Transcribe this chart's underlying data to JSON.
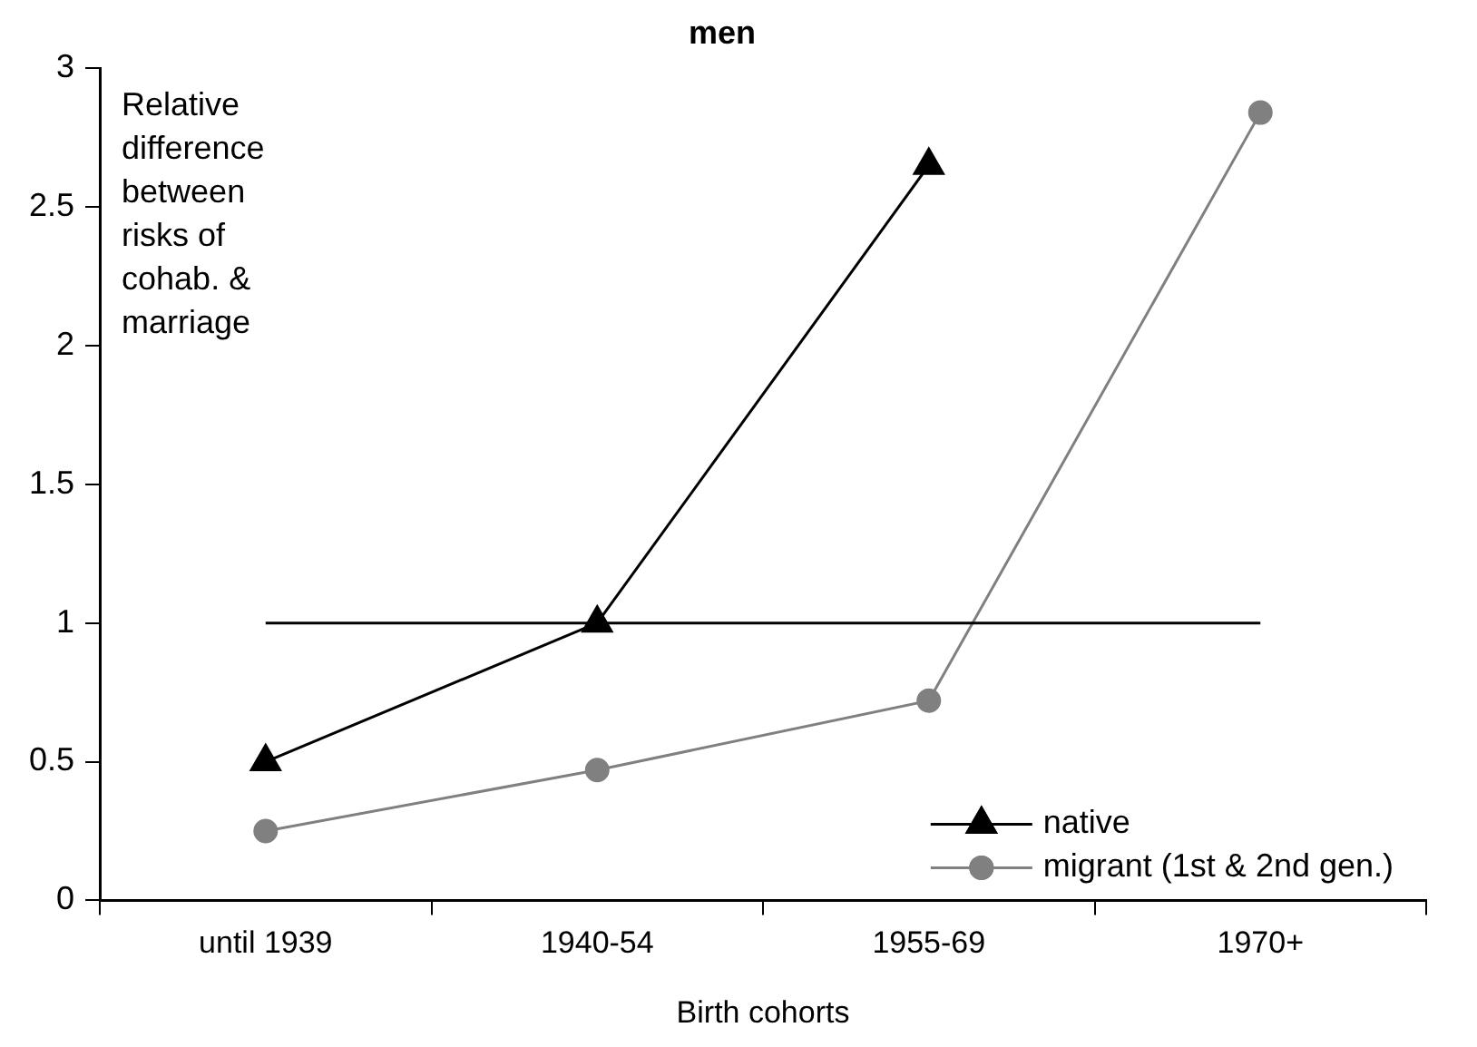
{
  "chart_data": {
    "type": "line",
    "title": "men",
    "xlabel": "Birth cohorts",
    "ylabel": "Relative difference between risks of cohab. & marriage",
    "categories": [
      "until 1939",
      "1940-54",
      "1955-69",
      "1970+"
    ],
    "series": [
      {
        "name": "native",
        "color": "#000000",
        "marker": "triangle",
        "values": [
          0.5,
          1.0,
          2.65,
          null
        ]
      },
      {
        "name": "migrant (1st & 2nd gen.)",
        "color": "#808080",
        "marker": "circle",
        "values": [
          0.25,
          0.47,
          0.72,
          2.84
        ]
      }
    ],
    "ylim": [
      0,
      3
    ],
    "yticks": [
      0,
      0.5,
      1,
      1.5,
      2,
      2.5,
      3
    ],
    "ref_lines": [
      {
        "axis": "y",
        "value": 1,
        "color": "#000000"
      }
    ],
    "grid": false,
    "legend": "bottom right"
  }
}
